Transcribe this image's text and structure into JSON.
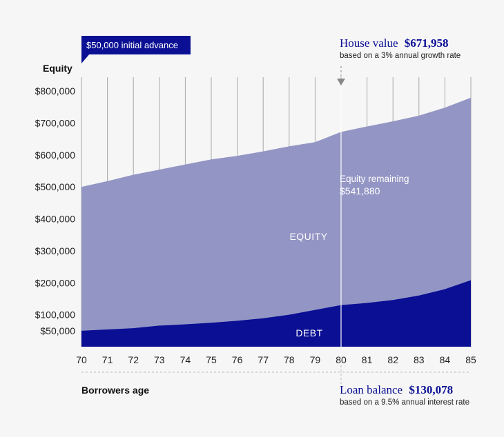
{
  "chart_data": {
    "type": "area",
    "title": "",
    "ylabel": "Equity",
    "xlabel": "Borrowers age",
    "x": [
      70,
      71,
      72,
      73,
      74,
      75,
      76,
      77,
      78,
      79,
      80,
      81,
      82,
      83,
      84,
      85
    ],
    "ylim": [
      0,
      800000
    ],
    "y_ticks": [
      50000,
      100000,
      200000,
      300000,
      400000,
      500000,
      600000,
      700000,
      800000
    ],
    "y_tick_labels": [
      "$50,000",
      "$100,000",
      "$200,000",
      "$300,000",
      "$400,000",
      "$500,000",
      "$600,000",
      "$700,000",
      "$800,000"
    ],
    "series": [
      {
        "name": "DEBT",
        "values": [
          50000,
          54000,
          58000,
          66000,
          70000,
          75000,
          81000,
          89000,
          100000,
          115000,
          130078,
          137000,
          146000,
          160000,
          180000,
          208000
        ]
      },
      {
        "name": "EQUITY",
        "values": [
          450000,
          464000,
          480000,
          488000,
          500000,
          511000,
          516000,
          522000,
          527000,
          525000,
          541880,
          552000,
          559000,
          563000,
          568000,
          571000
        ]
      }
    ],
    "total_values": [
      500000,
      518000,
      538000,
      554000,
      570000,
      586000,
      597000,
      611000,
      627000,
      640000,
      671958,
      689000,
      705000,
      723000,
      748000,
      779000
    ],
    "colors": {
      "debt": "#0a0f94",
      "equity": "#9396c4",
      "callout": "#0a0f94",
      "grid": "#a8a8a8",
      "marker": "#888888"
    },
    "annotations": {
      "initial_advance": "$50,000 initial advance",
      "equity_area_label": "EQUITY",
      "debt_area_label": "DEBT",
      "equity_remaining_label": "Equity remaining",
      "equity_remaining_value": "$541,880",
      "house_value_label": "House value",
      "house_value_amount": "$671,958",
      "house_value_note": "based on a 3% annual growth rate",
      "loan_balance_label": "Loan balance",
      "loan_balance_amount": "$130,078",
      "loan_balance_note": "based on a 9.5% annual interest rate",
      "marker_age": 80
    }
  }
}
